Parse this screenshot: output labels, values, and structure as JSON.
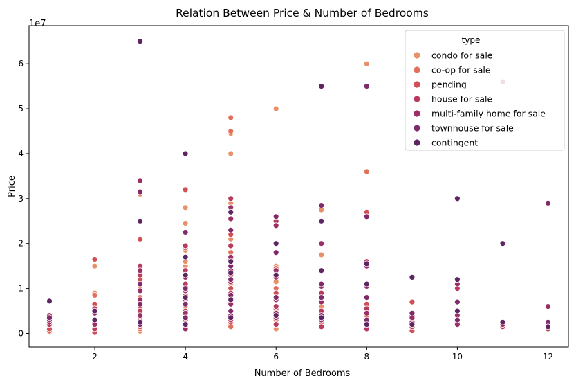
{
  "chart_data": {
    "type": "scatter",
    "title": "Relation Between Price & Number of Bedrooms",
    "xlabel": "Number of Bedrooms",
    "ylabel": "Price",
    "y_offset_label": "1e7",
    "xlim": [
      0.55,
      12.45
    ],
    "ylim": [
      -3000000,
      68500000
    ],
    "x_ticks": [
      2,
      4,
      6,
      8,
      10,
      12
    ],
    "y_ticks": [
      0,
      10000000,
      20000000,
      30000000,
      40000000,
      50000000,
      60000000
    ],
    "y_tick_labels": [
      "0",
      "1",
      "2",
      "3",
      "4",
      "5",
      "6"
    ],
    "grid": false,
    "legend": {
      "title": "type",
      "placement": "top-right"
    },
    "series": [
      {
        "name": "condo for sale",
        "color": "#e8906a",
        "points": [
          [
            1,
            300000
          ],
          [
            1,
            1500000
          ],
          [
            2,
            800000
          ],
          [
            2,
            9000000
          ],
          [
            2,
            15000000
          ],
          [
            3,
            500000
          ],
          [
            3,
            7000000
          ],
          [
            3,
            10000000
          ],
          [
            3,
            31000000
          ],
          [
            4,
            1000000
          ],
          [
            4,
            6000000
          ],
          [
            4,
            15000000
          ],
          [
            4,
            16000000
          ],
          [
            4,
            18500000
          ],
          [
            4,
            24500000
          ],
          [
            4,
            28000000
          ],
          [
            5,
            2000000
          ],
          [
            5,
            8000000
          ],
          [
            5,
            11000000
          ],
          [
            5,
            21000000
          ],
          [
            5,
            29000000
          ],
          [
            5,
            40000000
          ],
          [
            5,
            44500000
          ],
          [
            5,
            48000000
          ],
          [
            6,
            1000000
          ],
          [
            6,
            5000000
          ],
          [
            6,
            11500000
          ],
          [
            6,
            15000000
          ],
          [
            6,
            50000000
          ],
          [
            7,
            2000000
          ],
          [
            7,
            6000000
          ],
          [
            7,
            17500000
          ],
          [
            7,
            27500000
          ],
          [
            8,
            2000000
          ],
          [
            8,
            60000000
          ]
        ]
      },
      {
        "name": "co-op for sale",
        "color": "#e16f5c",
        "points": [
          [
            1,
            500000
          ],
          [
            2,
            400000
          ],
          [
            2,
            3000000
          ],
          [
            2,
            8500000
          ],
          [
            3,
            1000000
          ],
          [
            3,
            3500000
          ],
          [
            3,
            8000000
          ],
          [
            3,
            12500000
          ],
          [
            4,
            2000000
          ],
          [
            4,
            10500000
          ],
          [
            4,
            19000000
          ],
          [
            5,
            1500000
          ],
          [
            5,
            7000000
          ],
          [
            5,
            18000000
          ],
          [
            5,
            45000000
          ],
          [
            5,
            48000000
          ],
          [
            6,
            3000000
          ],
          [
            6,
            10000000
          ],
          [
            6,
            14500000
          ],
          [
            8,
            4000000
          ],
          [
            8,
            36000000
          ]
        ]
      },
      {
        "name": "pending",
        "color": "#d24e55",
        "points": [
          [
            1,
            1000000
          ],
          [
            2,
            200000
          ],
          [
            2,
            2500000
          ],
          [
            2,
            6500000
          ],
          [
            2,
            16500000
          ],
          [
            3,
            1500000
          ],
          [
            3,
            6000000
          ],
          [
            3,
            12000000
          ],
          [
            3,
            21000000
          ],
          [
            4,
            3000000
          ],
          [
            4,
            8500000
          ],
          [
            4,
            32000000
          ],
          [
            5,
            2500000
          ],
          [
            5,
            10000000
          ],
          [
            5,
            22000000
          ],
          [
            6,
            5500000
          ],
          [
            6,
            9000000
          ],
          [
            7,
            2500000
          ],
          [
            8,
            6500000
          ],
          [
            8,
            27000000
          ],
          [
            9,
            600000
          ],
          [
            9,
            7000000
          ]
        ]
      },
      {
        "name": "house for sale",
        "color": "#b83b5d",
        "points": [
          [
            1,
            2000000
          ],
          [
            1,
            4000000
          ],
          [
            2,
            1000000
          ],
          [
            2,
            5500000
          ],
          [
            3,
            2500000
          ],
          [
            3,
            5000000
          ],
          [
            3,
            13000000
          ],
          [
            3,
            15000000
          ],
          [
            4,
            1500000
          ],
          [
            4,
            5000000
          ],
          [
            4,
            11000000
          ],
          [
            4,
            14000000
          ],
          [
            4,
            19500000
          ],
          [
            5,
            3000000
          ],
          [
            5,
            9000000
          ],
          [
            5,
            13000000
          ],
          [
            5,
            16500000
          ],
          [
            5,
            19500000
          ],
          [
            5,
            30000000
          ],
          [
            6,
            2000000
          ],
          [
            6,
            6000000
          ],
          [
            6,
            12500000
          ],
          [
            6,
            25000000
          ],
          [
            7,
            1500000
          ],
          [
            7,
            5000000
          ],
          [
            7,
            9000000
          ],
          [
            8,
            1000000
          ],
          [
            8,
            5500000
          ],
          [
            8,
            16000000
          ],
          [
            9,
            1500000
          ],
          [
            9,
            4000000
          ],
          [
            10,
            2500000
          ],
          [
            10,
            10000000
          ],
          [
            11,
            1500000
          ],
          [
            12,
            1000000
          ]
        ]
      },
      {
        "name": "multi-family home for sale",
        "color": "#9c2e66",
        "points": [
          [
            1,
            2500000
          ],
          [
            1,
            3000000
          ],
          [
            2,
            2000000
          ],
          [
            2,
            4500000
          ],
          [
            3,
            3000000
          ],
          [
            3,
            4000000
          ],
          [
            3,
            7500000
          ],
          [
            3,
            9500000
          ],
          [
            3,
            14000000
          ],
          [
            3,
            34000000
          ],
          [
            4,
            1000000
          ],
          [
            4,
            4500000
          ],
          [
            4,
            7500000
          ],
          [
            4,
            9500000
          ],
          [
            4,
            12500000
          ],
          [
            5,
            4000000
          ],
          [
            5,
            6500000
          ],
          [
            5,
            11500000
          ],
          [
            5,
            14000000
          ],
          [
            5,
            17000000
          ],
          [
            5,
            25500000
          ],
          [
            5,
            28000000
          ],
          [
            6,
            3500000
          ],
          [
            6,
            7500000
          ],
          [
            6,
            14000000
          ],
          [
            6,
            24000000
          ],
          [
            7,
            3000000
          ],
          [
            7,
            7000000
          ],
          [
            7,
            10500000
          ],
          [
            7,
            20000000
          ],
          [
            8,
            2500000
          ],
          [
            8,
            4500000
          ],
          [
            8,
            10500000
          ],
          [
            8,
            15000000
          ],
          [
            9,
            2500000
          ],
          [
            9,
            3500000
          ],
          [
            10,
            2000000
          ],
          [
            10,
            4000000
          ],
          [
            10,
            11000000
          ],
          [
            11,
            2000000
          ],
          [
            12,
            2000000
          ],
          [
            12,
            6000000
          ]
        ]
      },
      {
        "name": "townhouse for sale",
        "color": "#7f2a6a",
        "points": [
          [
            1,
            3500000
          ],
          [
            2,
            5000000
          ],
          [
            3,
            2000000
          ],
          [
            3,
            6500000
          ],
          [
            3,
            11000000
          ],
          [
            3,
            31500000
          ],
          [
            4,
            3500000
          ],
          [
            4,
            6500000
          ],
          [
            4,
            10000000
          ],
          [
            4,
            13000000
          ],
          [
            4,
            22500000
          ],
          [
            5,
            5000000
          ],
          [
            5,
            8500000
          ],
          [
            5,
            12000000
          ],
          [
            5,
            15000000
          ],
          [
            5,
            23000000
          ],
          [
            6,
            4500000
          ],
          [
            6,
            8000000
          ],
          [
            6,
            18000000
          ],
          [
            6,
            26000000
          ],
          [
            7,
            4000000
          ],
          [
            7,
            8000000
          ],
          [
            7,
            11000000
          ],
          [
            7,
            28500000
          ],
          [
            8,
            3000000
          ],
          [
            8,
            8000000
          ],
          [
            8,
            26000000
          ],
          [
            8,
            55000000
          ],
          [
            9,
            4500000
          ],
          [
            10,
            3000000
          ],
          [
            10,
            7000000
          ],
          [
            11,
            56000000
          ],
          [
            12,
            2500000
          ],
          [
            12,
            29000000
          ]
        ]
      },
      {
        "name": "contingent",
        "color": "#5e2563",
        "points": [
          [
            1,
            7200000
          ],
          [
            2,
            3000000
          ],
          [
            2,
            5000000
          ],
          [
            3,
            2500000
          ],
          [
            3,
            25000000
          ],
          [
            3,
            65000000
          ],
          [
            4,
            2000000
          ],
          [
            4,
            8000000
          ],
          [
            4,
            13000000
          ],
          [
            4,
            17000000
          ],
          [
            4,
            40000000
          ],
          [
            5,
            3500000
          ],
          [
            5,
            7500000
          ],
          [
            5,
            13500000
          ],
          [
            5,
            16000000
          ],
          [
            5,
            27000000
          ],
          [
            6,
            4000000
          ],
          [
            6,
            13000000
          ],
          [
            6,
            20000000
          ],
          [
            7,
            3500000
          ],
          [
            7,
            14000000
          ],
          [
            7,
            25000000
          ],
          [
            7,
            55000000
          ],
          [
            8,
            2000000
          ],
          [
            8,
            11000000
          ],
          [
            8,
            15500000
          ],
          [
            9,
            2000000
          ],
          [
            9,
            12500000
          ],
          [
            10,
            5000000
          ],
          [
            10,
            12000000
          ],
          [
            10,
            30000000
          ],
          [
            11,
            2500000
          ],
          [
            11,
            20000000
          ],
          [
            12,
            1500000
          ]
        ]
      }
    ]
  }
}
